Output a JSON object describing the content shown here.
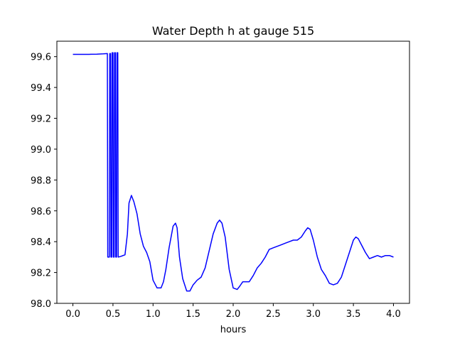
{
  "chart_data": {
    "type": "line",
    "title": "Water Depth h at gauge 515",
    "xlabel": "hours",
    "ylabel": "",
    "xlim": [
      -0.2,
      4.2
    ],
    "ylim": [
      98.0,
      99.7
    ],
    "xticks": [
      "0.0",
      "0.5",
      "1.0",
      "1.5",
      "2.0",
      "2.5",
      "3.0",
      "3.5",
      "4.0"
    ],
    "yticks": [
      "98.0",
      "98.2",
      "98.4",
      "98.6",
      "98.8",
      "99.0",
      "99.2",
      "99.4",
      "99.6"
    ],
    "grid": false,
    "series": [
      {
        "color": "#0000ff",
        "x": [
          0.0,
          0.1,
          0.2,
          0.3,
          0.38,
          0.43,
          0.435,
          0.455,
          0.46,
          0.47,
          0.475,
          0.485,
          0.49,
          0.5,
          0.505,
          0.515,
          0.52,
          0.53,
          0.535,
          0.545,
          0.55,
          0.56,
          0.565,
          0.6,
          0.65,
          0.68,
          0.7,
          0.73,
          0.76,
          0.8,
          0.84,
          0.88,
          0.92,
          0.96,
          1.0,
          1.05,
          1.1,
          1.13,
          1.16,
          1.2,
          1.25,
          1.28,
          1.3,
          1.33,
          1.37,
          1.42,
          1.46,
          1.5,
          1.55,
          1.6,
          1.65,
          1.7,
          1.75,
          1.8,
          1.83,
          1.86,
          1.9,
          1.95,
          2.0,
          2.05,
          2.08,
          2.12,
          2.16,
          2.2,
          2.25,
          2.3,
          2.35,
          2.4,
          2.45,
          2.5,
          2.55,
          2.6,
          2.65,
          2.7,
          2.75,
          2.8,
          2.85,
          2.9,
          2.93,
          2.96,
          3.0,
          3.05,
          3.1,
          3.15,
          3.2,
          3.25,
          3.3,
          3.35,
          3.4,
          3.45,
          3.5,
          3.53,
          3.56,
          3.6,
          3.65,
          3.7,
          3.75,
          3.8,
          3.85,
          3.9,
          3.95,
          4.0
        ],
        "y": [
          99.615,
          99.615,
          99.615,
          99.616,
          99.618,
          99.62,
          98.3,
          98.3,
          99.62,
          99.62,
          98.3,
          98.3,
          99.625,
          99.625,
          98.3,
          98.3,
          99.625,
          99.625,
          98.3,
          98.3,
          99.625,
          99.625,
          98.3,
          98.305,
          98.315,
          98.45,
          98.65,
          98.7,
          98.66,
          98.58,
          98.45,
          98.37,
          98.33,
          98.27,
          98.15,
          98.1,
          98.1,
          98.14,
          98.22,
          98.36,
          98.5,
          98.52,
          98.49,
          98.3,
          98.16,
          98.08,
          98.08,
          98.12,
          98.15,
          98.17,
          98.23,
          98.34,
          98.45,
          98.52,
          98.54,
          98.52,
          98.43,
          98.22,
          98.1,
          98.09,
          98.11,
          98.14,
          98.14,
          98.14,
          98.18,
          98.23,
          98.26,
          98.3,
          98.35,
          98.36,
          98.37,
          98.38,
          98.39,
          98.4,
          98.41,
          98.41,
          98.43,
          98.47,
          98.49,
          98.48,
          98.41,
          98.3,
          98.22,
          98.18,
          98.13,
          98.12,
          98.13,
          98.17,
          98.25,
          98.33,
          98.41,
          98.43,
          98.42,
          98.38,
          98.33,
          98.29,
          98.3,
          98.31,
          98.3,
          98.31,
          98.31,
          98.3
        ]
      }
    ]
  }
}
